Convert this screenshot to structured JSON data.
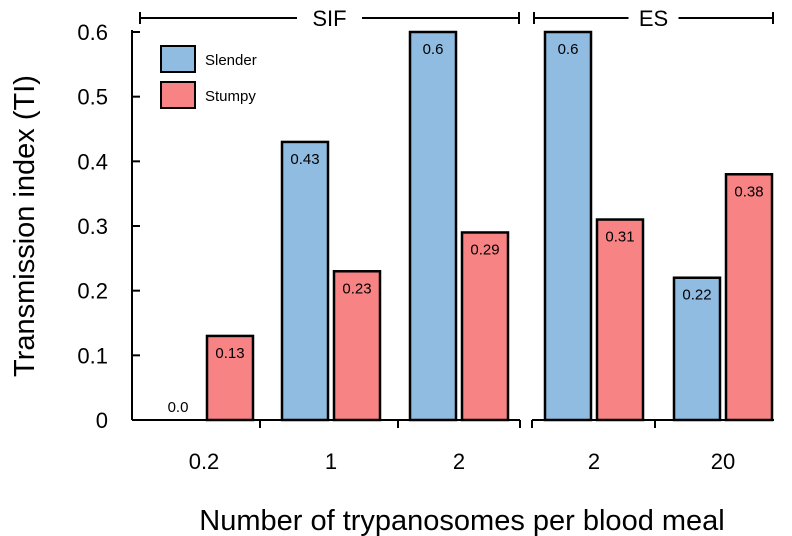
{
  "chart_data": {
    "type": "bar",
    "title": "",
    "xlabel": "Number of trypanosomes per blood meal",
    "ylabel": "Transmission index (TI)",
    "ylim": [
      0,
      0.6
    ],
    "yticks": [
      "0",
      "0.1",
      "0.2",
      "0.3",
      "0.4",
      "0.5",
      "0.6"
    ],
    "categories": [
      "0.2",
      "1",
      "2",
      "2",
      "20"
    ],
    "groups": [
      {
        "label": "SIF",
        "categories": [
          0,
          1,
          2
        ]
      },
      {
        "label": "ES",
        "categories": [
          3,
          4
        ]
      }
    ],
    "series": [
      {
        "name": "Slender",
        "color": "#8fbce0",
        "values": [
          0.0,
          0.43,
          0.6,
          0.6,
          0.22
        ],
        "labels": [
          "0.0",
          "0.43",
          "0.6",
          "0.6",
          "0.22"
        ]
      },
      {
        "name": "Stumpy",
        "color": "#f88384",
        "values": [
          0.13,
          0.23,
          0.29,
          0.31,
          0.38
        ],
        "labels": [
          "0.13",
          "0.23",
          "0.29",
          "0.31",
          "0.38"
        ]
      }
    ],
    "legend_position": "top-left",
    "grid": false
  }
}
